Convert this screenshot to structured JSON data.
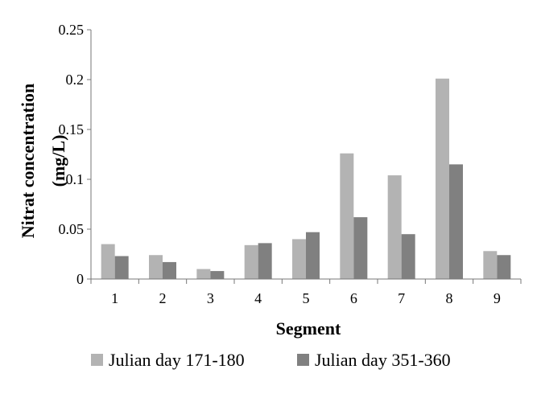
{
  "chart_data": {
    "type": "bar",
    "categories": [
      "1",
      "2",
      "3",
      "4",
      "5",
      "6",
      "7",
      "8",
      "9"
    ],
    "series": [
      {
        "name": "Julian day 171-180",
        "color": "#b3b3b3",
        "values": [
          0.035,
          0.024,
          0.01,
          0.034,
          0.04,
          0.126,
          0.104,
          0.201,
          0.028
        ]
      },
      {
        "name": "Julian day 351-360",
        "color": "#808080",
        "values": [
          0.023,
          0.017,
          0.008,
          0.036,
          0.047,
          0.062,
          0.045,
          0.115,
          0.024
        ]
      }
    ],
    "title": "",
    "xlabel": "Segment",
    "ylabel_line1": "Nitrat concentration",
    "ylabel_line2": "(mg/L)",
    "ylim": [
      0,
      0.25
    ],
    "yticks": [
      "0",
      "0.05",
      "0.1",
      "0.15",
      "0.2",
      "0.25"
    ],
    "grid": false,
    "legend_position": "bottom"
  }
}
